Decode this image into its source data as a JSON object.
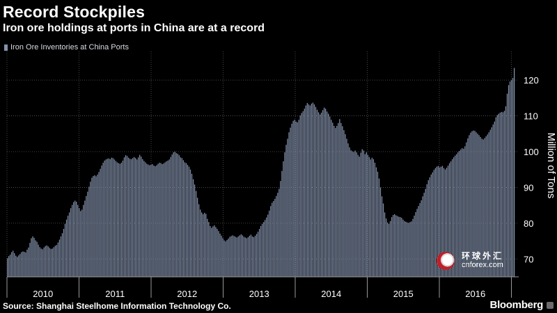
{
  "title": "Record Stockpiles",
  "subtitle": "Iron ore holdings at ports in China are at a record",
  "source": "Source: Shanghai Steelhome Information Technology Co.",
  "brand": "Bloomberg",
  "watermark": {
    "chinese": "环球外汇",
    "url": "cnforex.com"
  },
  "colors": {
    "background": "#000000",
    "bar": "#8593ad",
    "grid": "#5a5a5a",
    "text": "#ffffff"
  },
  "chart_data": {
    "type": "bar",
    "title": "Record Stockpiles",
    "subtitle": "Iron ore holdings at ports in China are at a record",
    "ylabel": "Million of Tons",
    "ylim": [
      65,
      128
    ],
    "yticks": [
      70,
      80,
      90,
      100,
      110,
      120
    ],
    "y_axis_side": "right",
    "frequency": "weekly",
    "x_range": [
      "2009-12",
      "2017-02"
    ],
    "xtick_labels": [
      "2010",
      "2011",
      "2012",
      "2013",
      "2014",
      "2015",
      "2016"
    ],
    "grid": true,
    "legend_position": "top-left",
    "series": [
      {
        "name": "Iron Ore Inventories at China Ports",
        "color": "#8593ad",
        "values": [
          70.2,
          70.8,
          71.2,
          71.9,
          72.3,
          71.6,
          70.9,
          70.6,
          71.0,
          71.4,
          71.9,
          72.1,
          72.0,
          71.8,
          72.6,
          73.2,
          74.5,
          75.8,
          76.3,
          75.9,
          75.2,
          74.8,
          74.0,
          73.3,
          72.9,
          72.7,
          73.2,
          73.6,
          73.8,
          73.5,
          73.1,
          72.8,
          72.9,
          73.3,
          73.7,
          73.9,
          74.6,
          75.4,
          76.3,
          77.2,
          78.4,
          79.8,
          81.0,
          82.1,
          83.0,
          84.2,
          85.1,
          85.9,
          86.3,
          86.0,
          85.1,
          84.2,
          83.4,
          83.8,
          85.1,
          86.3,
          87.6,
          88.8,
          90.2,
          91.6,
          92.7,
          93.2,
          93.4,
          93.1,
          93.6,
          94.3,
          95.2,
          96.1,
          96.9,
          97.5,
          97.8,
          98.0,
          98.1,
          97.9,
          98.3,
          98.2,
          97.8,
          97.4,
          97.0,
          96.8,
          96.6,
          96.9,
          97.5,
          98.4,
          99.0,
          98.8,
          98.3,
          98.0,
          97.9,
          98.2,
          98.5,
          98.2,
          97.8,
          98.4,
          99.1,
          98.6,
          97.9,
          97.4,
          97.0,
          96.6,
          96.4,
          96.2,
          96.3,
          96.5,
          96.1,
          95.9,
          96.2,
          96.6,
          96.9,
          96.8,
          96.5,
          96.7,
          97.0,
          97.3,
          97.5,
          97.8,
          98.5,
          99.2,
          99.8,
          100.0,
          99.6,
          99.4,
          99.0,
          98.4,
          98.2,
          97.6,
          97.0,
          96.8,
          96.3,
          95.8,
          95.0,
          93.8,
          92.3,
          90.8,
          89.0,
          87.1,
          85.3,
          83.8,
          83.0,
          82.5,
          82.9,
          82.6,
          81.2,
          80.3,
          79.2,
          78.7,
          79.1,
          79.4,
          78.9,
          78.4,
          77.8,
          77.1,
          76.5,
          75.8,
          75.2,
          74.9,
          75.3,
          75.7,
          76.2,
          76.4,
          76.6,
          76.4,
          76.2,
          76.0,
          76.3,
          76.6,
          76.9,
          76.6,
          76.2,
          76.0,
          75.8,
          76.1,
          76.5,
          76.8,
          76.3,
          76.1,
          76.5,
          77.0,
          77.6,
          78.4,
          79.2,
          79.8,
          80.3,
          80.9,
          81.6,
          82.4,
          83.5,
          84.8,
          85.7,
          86.2,
          86.8,
          87.6,
          88.5,
          89.6,
          91.8,
          94.6,
          97.3,
          99.8,
          101.9,
          103.6,
          105.4,
          106.7,
          107.8,
          108.6,
          108.9,
          108.4,
          108.2,
          108.9,
          110.1,
          110.8,
          111.3,
          112.0,
          112.9,
          113.6,
          113.2,
          112.9,
          113.4,
          113.7,
          113.2,
          112.5,
          111.7,
          111.0,
          110.4,
          110.9,
          111.6,
          112.3,
          112.0,
          111.2,
          110.6,
          109.8,
          108.9,
          108.1,
          107.2,
          106.6,
          107.2,
          108.0,
          109.1,
          108.0,
          107.1,
          106.0,
          104.9,
          103.6,
          102.3,
          101.2,
          100.4,
          100.1,
          99.9,
          100.3,
          99.8,
          99.1,
          98.6,
          99.7,
          100.7,
          100.3,
          99.3,
          99.8,
          99.1,
          98.5,
          97.8,
          98.3,
          97.9,
          96.9,
          95.6,
          94.4,
          92.5,
          90.0,
          87.5,
          85.5,
          83.0,
          81.3,
          80.2,
          79.8,
          80.6,
          81.7,
          82.3,
          82.5,
          82.2,
          82.0,
          81.8,
          81.7,
          81.5,
          81.0,
          80.6,
          80.4,
          80.2,
          80.1,
          80.3,
          80.5,
          81.2,
          82.1,
          83.1,
          84.0,
          84.8,
          85.6,
          86.4,
          87.5,
          88.5,
          89.6,
          90.9,
          92.0,
          92.8,
          93.6,
          94.2,
          94.9,
          95.4,
          95.8,
          96.0,
          95.6,
          95.8,
          96.0,
          95.4,
          95.0,
          95.5,
          96.1,
          96.8,
          97.3,
          97.9,
          98.4,
          98.9,
          99.3,
          99.8,
          100.2,
          100.6,
          101.0,
          100.8,
          101.5,
          102.6,
          103.7,
          104.6,
          105.3,
          105.7,
          105.9,
          105.8,
          105.4,
          105.0,
          104.6,
          104.1,
          103.6,
          103.4,
          103.8,
          104.3,
          104.8,
          105.4,
          106.1,
          106.8,
          107.6,
          108.4,
          109.6,
          110.2,
          110.6,
          110.9,
          111.1,
          111.0,
          111.4,
          112.7,
          116.2,
          118.6,
          119.6,
          120.0,
          120.6,
          123.4
        ]
      }
    ]
  }
}
